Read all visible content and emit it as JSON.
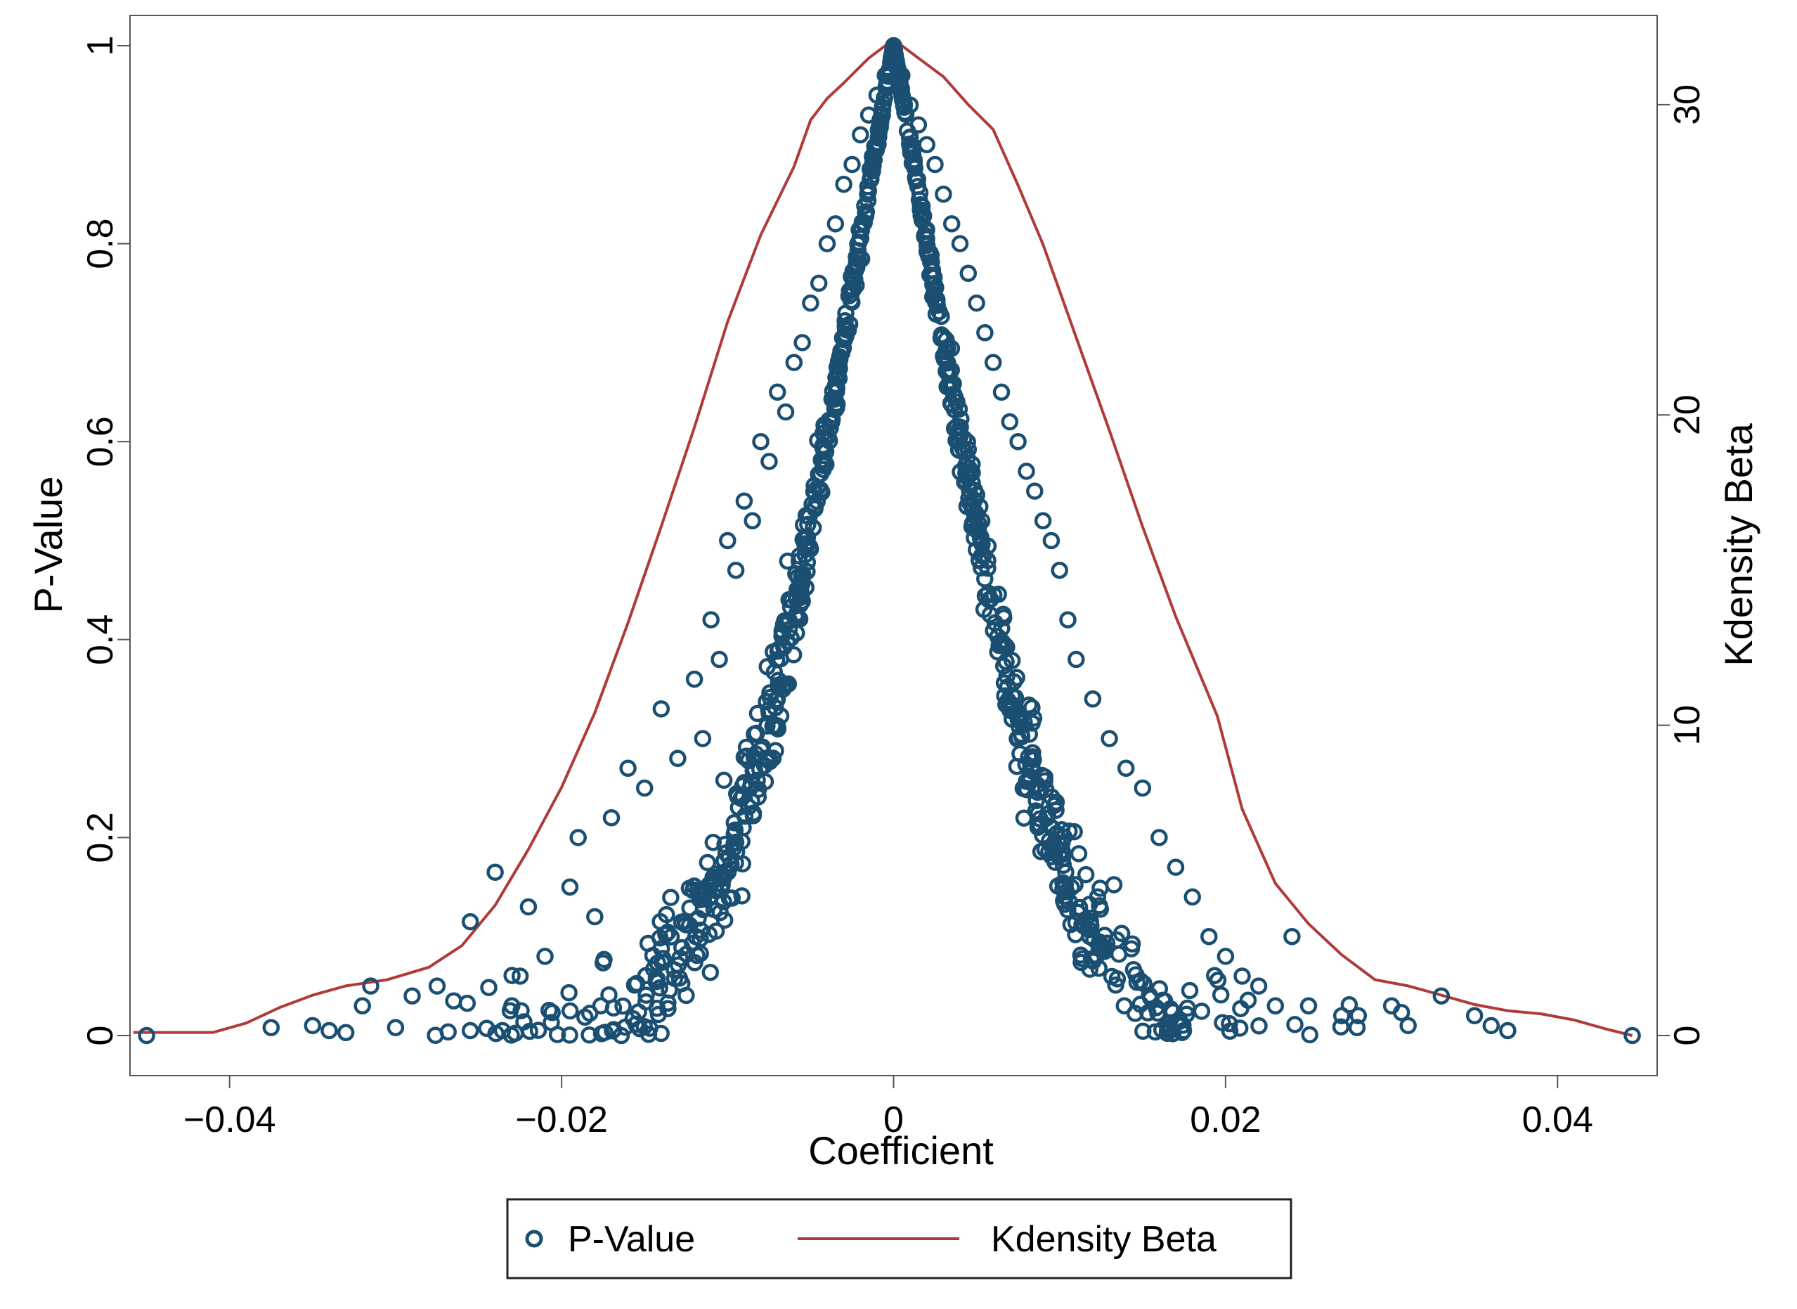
{
  "chart_data": {
    "type": "scatter",
    "xlabel": "Coefficient",
    "ylabel_left": "P-Value",
    "ylabel_right": "Kdensity Beta",
    "xlim": [
      -0.046,
      0.046
    ],
    "ylim_left": [
      0,
      1
    ],
    "ylim_right": [
      0,
      31.9
    ],
    "x_ticks": [
      -0.04,
      -0.02,
      0,
      0.02,
      0.04
    ],
    "x_tick_labels": [
      "−0.04",
      "−0.02",
      "0",
      "0.02",
      "0.04"
    ],
    "y_ticks_left": [
      0,
      0.2,
      0.4,
      0.6,
      0.8,
      1
    ],
    "y_tick_labels_left": [
      "0",
      "0.2",
      "0.4",
      "0.6",
      "0.8",
      "1"
    ],
    "y_ticks_right": [
      0,
      10,
      20,
      30
    ],
    "y_tick_labels_right": [
      "0",
      "10",
      "20",
      "30"
    ],
    "legend": {
      "position": "bottom",
      "entries": [
        {
          "label": "P-Value",
          "marker": "circle",
          "color": "#1b4f72"
        },
        {
          "label": "Kdensity Beta",
          "marker": "line",
          "color": "#b03a3a"
        }
      ]
    },
    "series": [
      {
        "name": "P-Value",
        "kind": "scatter",
        "color": "#1b4f72",
        "n_points": 1000,
        "points": [
          [
            -0.045,
            0.0
          ],
          [
            -0.0375,
            0.008
          ],
          [
            -0.035,
            0.01
          ],
          [
            -0.034,
            0.005
          ],
          [
            -0.033,
            0.003
          ],
          [
            -0.032,
            0.03
          ],
          [
            -0.0315,
            0.05
          ],
          [
            -0.03,
            0.008
          ],
          [
            -0.029,
            0.04
          ],
          [
            -0.0275,
            0.05
          ],
          [
            -0.0265,
            0.035
          ],
          [
            -0.0255,
            0.005
          ],
          [
            -0.0255,
            0.115
          ],
          [
            -0.024,
            0.165
          ],
          [
            -0.023,
            0.03
          ],
          [
            -0.0225,
            0.06
          ],
          [
            -0.022,
            0.13
          ],
          [
            -0.021,
            0.08
          ],
          [
            -0.0195,
            0.15
          ],
          [
            -0.019,
            0.2
          ],
          [
            -0.018,
            0.12
          ],
          [
            -0.017,
            0.22
          ],
          [
            -0.016,
            0.27
          ],
          [
            -0.015,
            0.25
          ],
          [
            -0.014,
            0.33
          ],
          [
            -0.013,
            0.28
          ],
          [
            -0.012,
            0.36
          ],
          [
            -0.0115,
            0.3
          ],
          [
            -0.011,
            0.42
          ],
          [
            -0.0105,
            0.38
          ],
          [
            -0.01,
            0.5
          ],
          [
            -0.0095,
            0.47
          ],
          [
            -0.009,
            0.54
          ],
          [
            -0.0085,
            0.52
          ],
          [
            -0.008,
            0.6
          ],
          [
            -0.0075,
            0.58
          ],
          [
            -0.007,
            0.65
          ],
          [
            -0.0065,
            0.63
          ],
          [
            -0.006,
            0.68
          ],
          [
            -0.0055,
            0.7
          ],
          [
            -0.005,
            0.74
          ],
          [
            -0.0045,
            0.76
          ],
          [
            -0.004,
            0.8
          ],
          [
            -0.0035,
            0.82
          ],
          [
            -0.003,
            0.86
          ],
          [
            -0.0025,
            0.88
          ],
          [
            -0.002,
            0.91
          ],
          [
            -0.0015,
            0.93
          ],
          [
            -0.001,
            0.95
          ],
          [
            -0.0005,
            0.97
          ],
          [
            0.0,
            1.0
          ],
          [
            0.0005,
            0.97
          ],
          [
            0.001,
            0.94
          ],
          [
            0.0015,
            0.92
          ],
          [
            0.002,
            0.9
          ],
          [
            0.0025,
            0.88
          ],
          [
            0.003,
            0.85
          ],
          [
            0.0035,
            0.82
          ],
          [
            0.004,
            0.8
          ],
          [
            0.0045,
            0.77
          ],
          [
            0.005,
            0.74
          ],
          [
            0.0055,
            0.71
          ],
          [
            0.006,
            0.68
          ],
          [
            0.0065,
            0.65
          ],
          [
            0.007,
            0.62
          ],
          [
            0.0075,
            0.6
          ],
          [
            0.008,
            0.57
          ],
          [
            0.0085,
            0.55
          ],
          [
            0.009,
            0.52
          ],
          [
            0.0095,
            0.5
          ],
          [
            0.01,
            0.47
          ],
          [
            0.0105,
            0.42
          ],
          [
            0.011,
            0.38
          ],
          [
            0.012,
            0.34
          ],
          [
            0.013,
            0.3
          ],
          [
            0.014,
            0.27
          ],
          [
            0.015,
            0.25
          ],
          [
            0.016,
            0.2
          ],
          [
            0.017,
            0.17
          ],
          [
            0.018,
            0.14
          ],
          [
            0.019,
            0.1
          ],
          [
            0.02,
            0.08
          ],
          [
            0.021,
            0.06
          ],
          [
            0.022,
            0.05
          ],
          [
            0.023,
            0.03
          ],
          [
            0.024,
            0.1
          ],
          [
            0.025,
            0.03
          ],
          [
            0.027,
            0.02
          ],
          [
            0.028,
            0.02
          ],
          [
            0.03,
            0.03
          ],
          [
            0.031,
            0.01
          ],
          [
            0.033,
            0.04
          ],
          [
            0.035,
            0.02
          ],
          [
            0.036,
            0.01
          ],
          [
            0.037,
            0.005
          ],
          [
            0.0445,
            0.0
          ]
        ]
      },
      {
        "name": "Kdensity Beta",
        "kind": "line",
        "axis": "right",
        "color": "#b03a3a",
        "points": [
          [
            -0.0458,
            0.1
          ],
          [
            -0.041,
            0.1
          ],
          [
            -0.039,
            0.4
          ],
          [
            -0.037,
            0.9
          ],
          [
            -0.035,
            1.3
          ],
          [
            -0.033,
            1.6
          ],
          [
            -0.0305,
            1.8
          ],
          [
            -0.028,
            2.2
          ],
          [
            -0.026,
            2.9
          ],
          [
            -0.024,
            4.2
          ],
          [
            -0.022,
            6.0
          ],
          [
            -0.02,
            8.0
          ],
          [
            -0.018,
            10.4
          ],
          [
            -0.016,
            13.3
          ],
          [
            -0.014,
            16.4
          ],
          [
            -0.012,
            19.6
          ],
          [
            -0.01,
            23.0
          ],
          [
            -0.008,
            25.8
          ],
          [
            -0.006,
            28.0
          ],
          [
            -0.005,
            29.5
          ],
          [
            -0.004,
            30.2
          ],
          [
            -0.003,
            30.7
          ],
          [
            -0.0015,
            31.5
          ],
          [
            -0.0005,
            31.9
          ],
          [
            0.0005,
            31.9
          ],
          [
            0.0015,
            31.5
          ],
          [
            0.003,
            30.9
          ],
          [
            0.0045,
            30.0
          ],
          [
            0.006,
            29.2
          ],
          [
            0.0075,
            27.4
          ],
          [
            0.009,
            25.5
          ],
          [
            0.011,
            22.5
          ],
          [
            0.013,
            19.5
          ],
          [
            0.015,
            16.4
          ],
          [
            0.017,
            13.5
          ],
          [
            0.0195,
            10.3
          ],
          [
            0.021,
            7.3
          ],
          [
            0.023,
            4.9
          ],
          [
            0.025,
            3.6
          ],
          [
            0.027,
            2.6
          ],
          [
            0.029,
            1.8
          ],
          [
            0.031,
            1.6
          ],
          [
            0.033,
            1.3
          ],
          [
            0.035,
            1.0
          ],
          [
            0.037,
            0.8
          ],
          [
            0.039,
            0.7
          ],
          [
            0.041,
            0.5
          ],
          [
            0.043,
            0.2
          ],
          [
            0.0445,
            0.0
          ]
        ]
      }
    ]
  }
}
